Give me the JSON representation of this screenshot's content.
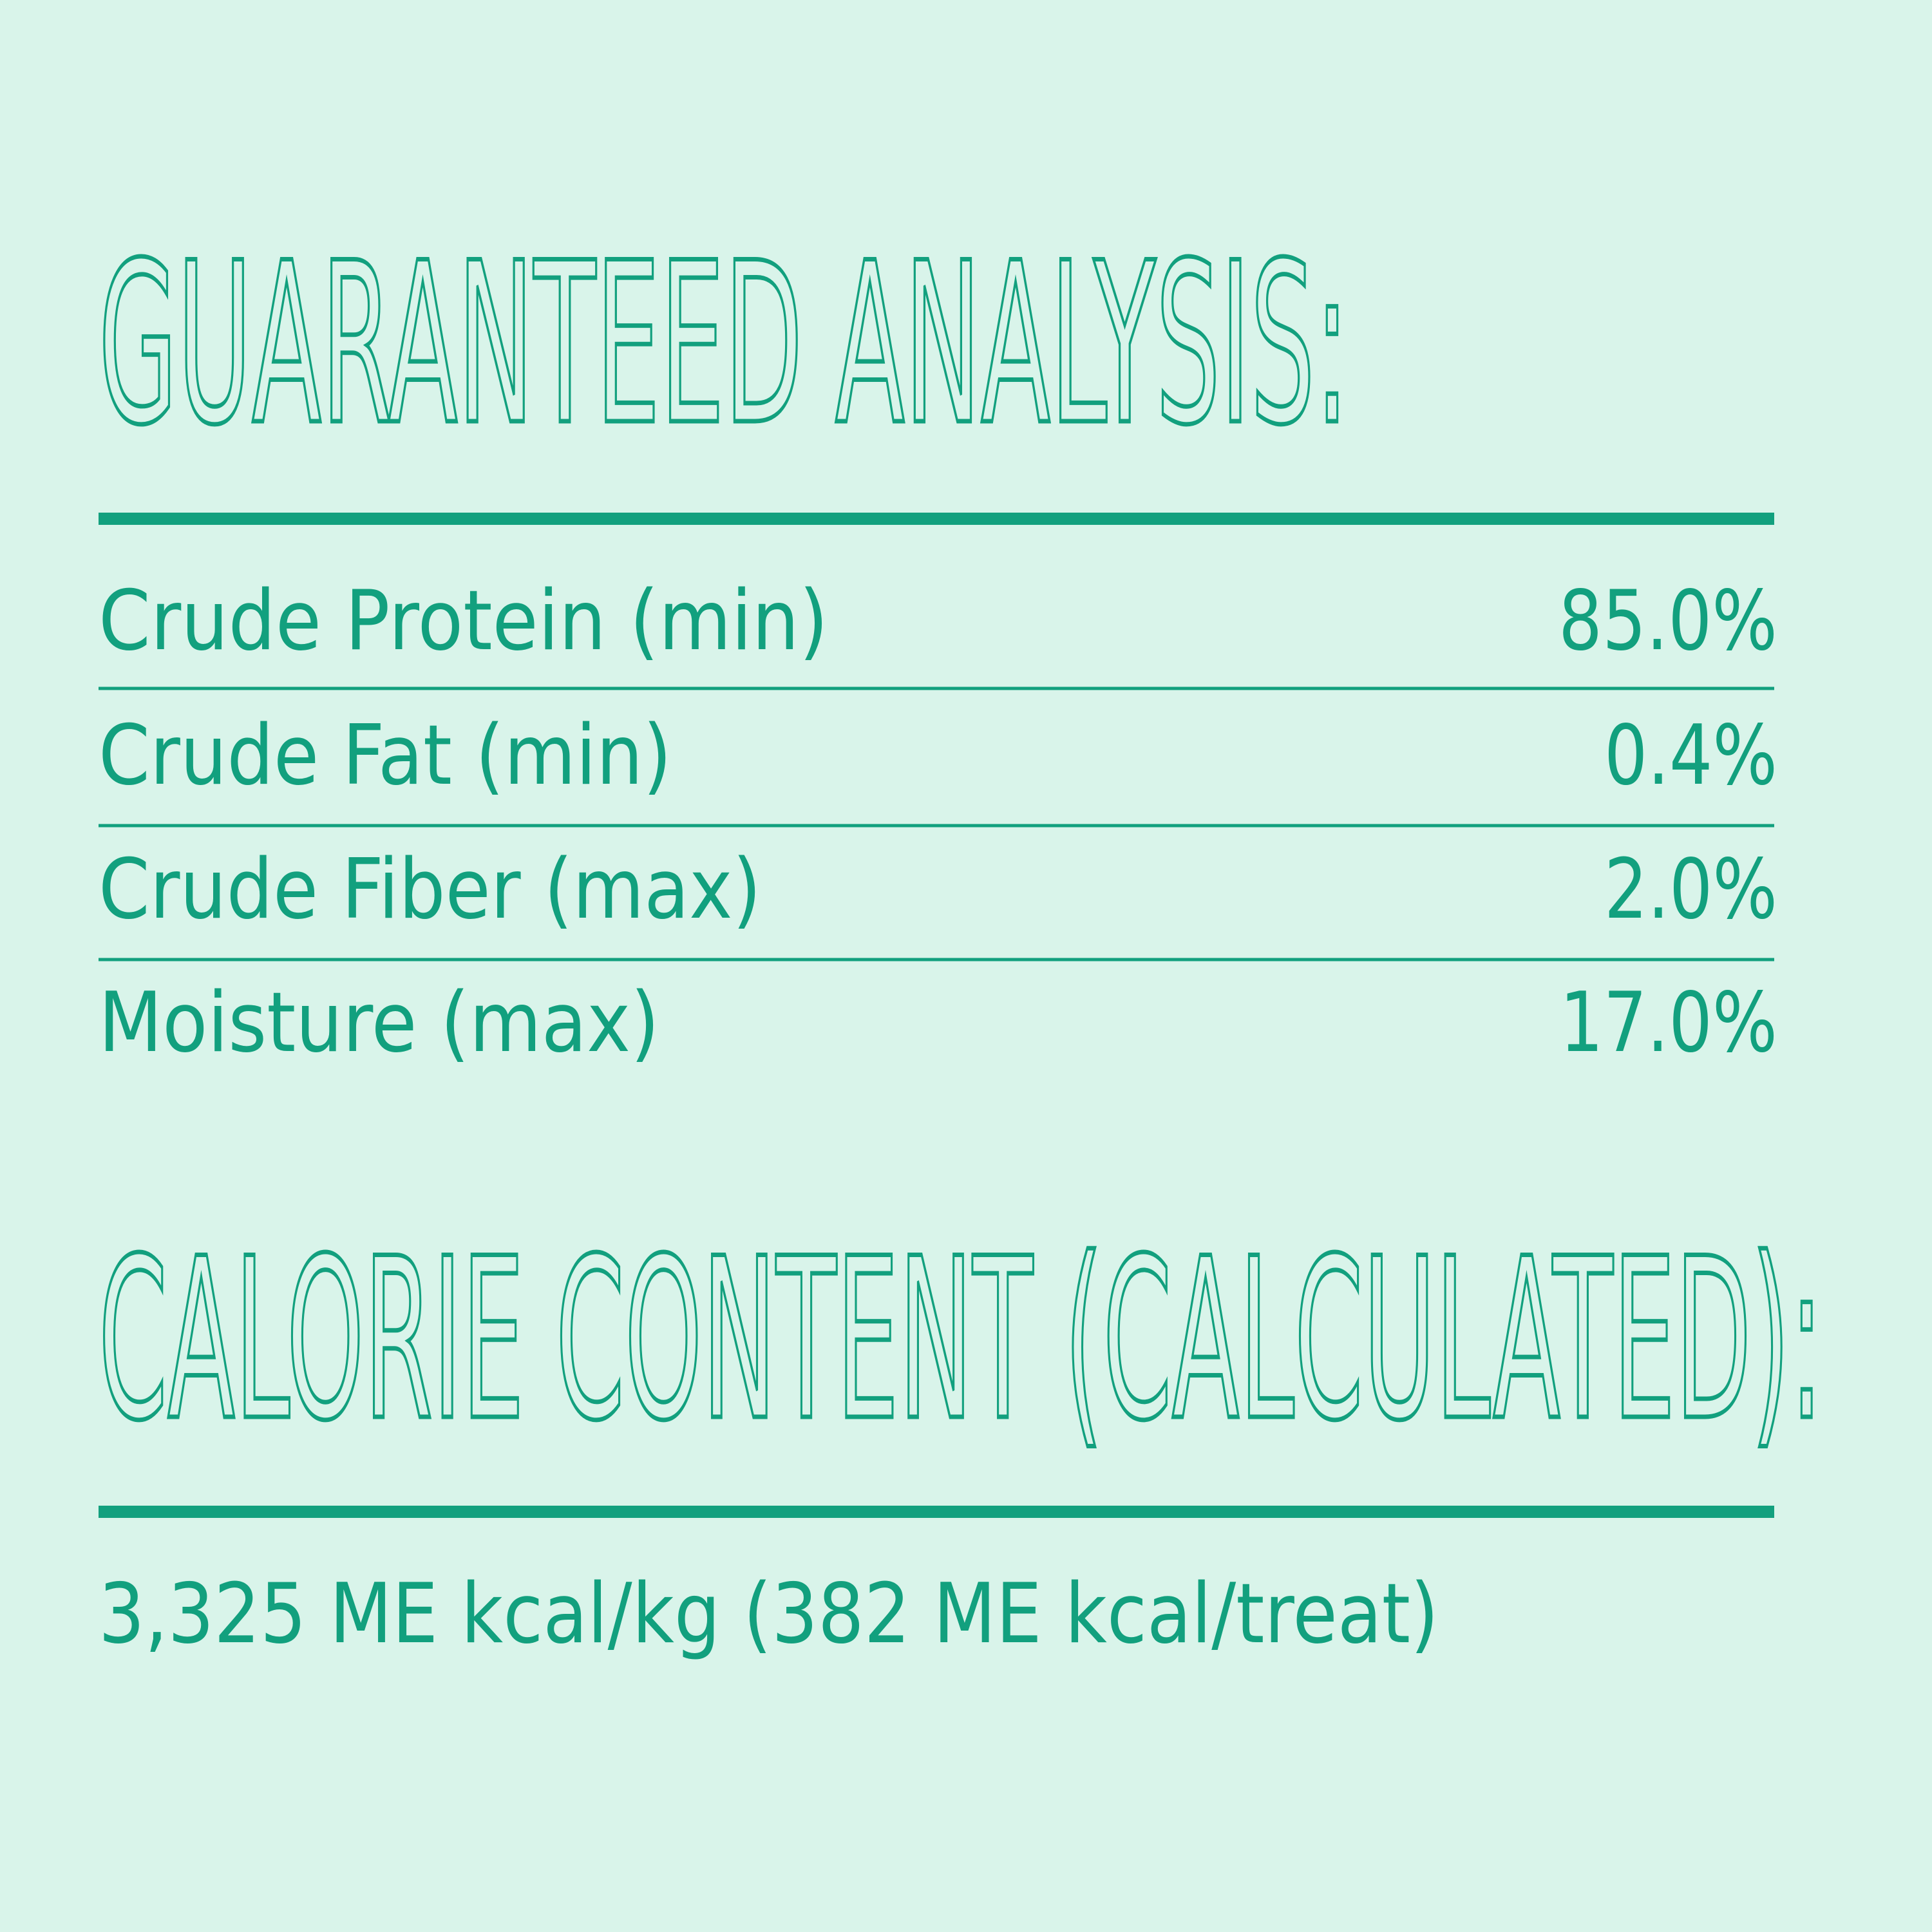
{
  "guaranteed_analysis": {
    "title": "GUARANTEED ANALYSIS:",
    "rows": [
      {
        "label": "Crude Protein (min)",
        "value": "85.0%"
      },
      {
        "label": "Crude Fat (min)",
        "value": "0.4%"
      },
      {
        "label": "Crude Fiber (max)",
        "value": "2.0%"
      },
      {
        "label": "Moisture (max)",
        "value": "17.0%"
      }
    ]
  },
  "calorie_content": {
    "title": "CALORIE CONTENT (CALCULATED):",
    "text": "3,325 ME kcal/kg (382 ME kcal/treat)"
  }
}
